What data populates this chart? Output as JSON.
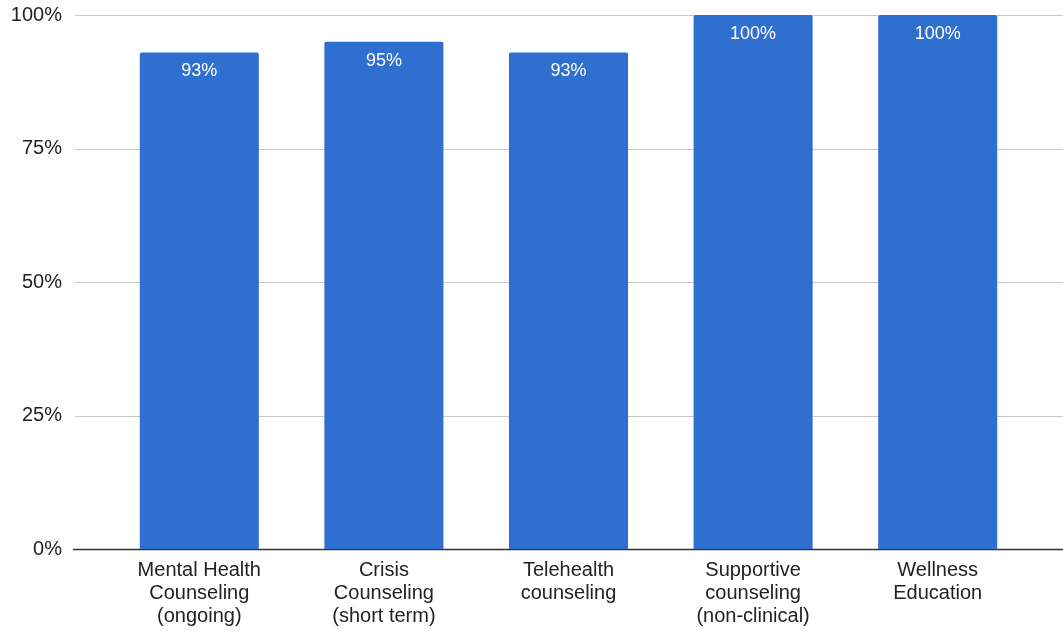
{
  "chart_data": {
    "type": "bar",
    "categories": [
      "Mental Health Counseling (ongoing)",
      "Crisis Counseling (short term)",
      "Telehealth counseling",
      "Supportive counseling (non-clinical)",
      "Wellness Education"
    ],
    "values": [
      93,
      95,
      93,
      100,
      100
    ],
    "value_labels": [
      "93%",
      "95%",
      "93%",
      "100%",
      "100%"
    ],
    "color": "#2e6fcf",
    "ylim": [
      0,
      100
    ],
    "yticks": [
      {
        "value": 0,
        "label": "0%"
      },
      {
        "value": 25,
        "label": "25%"
      },
      {
        "value": 50,
        "label": "50%"
      },
      {
        "value": 75,
        "label": "75%"
      },
      {
        "value": 100,
        "label": "100%"
      }
    ],
    "grid": "y",
    "legend": false
  }
}
